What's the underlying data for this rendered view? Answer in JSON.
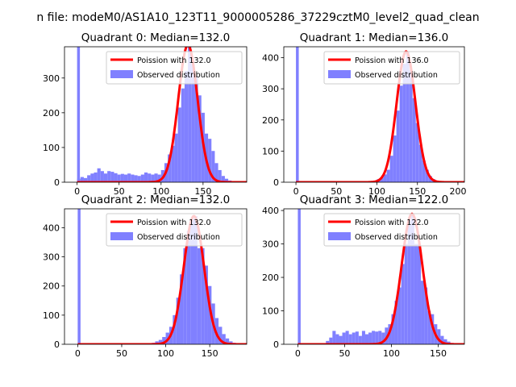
{
  "suptitle": "n file: modeM0/AS1A10_123T11_9000005286_37229cztM0_level2_quad_clean",
  "legend_labels": {
    "poisson_prefix": "Poission with ",
    "observed": "Observed distribution"
  },
  "colors": {
    "poisson": "#ff0000",
    "observed": "#8080ff"
  },
  "chart_data": [
    {
      "type": "bar",
      "title": "Quadrant 0: Median=132.0",
      "median": 132.0,
      "poisson_label": "Poission with 132.0",
      "xlim": [
        -15,
        202
      ],
      "ylim": [
        0,
        390
      ],
      "xticks": [
        0,
        50,
        100,
        150
      ],
      "yticks": [
        0,
        100,
        200,
        300
      ],
      "spike": {
        "x": 0,
        "height": 390
      },
      "bin_width": 4,
      "bins": [
        [
          0,
          10
        ],
        [
          4,
          15
        ],
        [
          8,
          12
        ],
        [
          12,
          20
        ],
        [
          16,
          25
        ],
        [
          20,
          28
        ],
        [
          24,
          40
        ],
        [
          28,
          32
        ],
        [
          32,
          25
        ],
        [
          36,
          32
        ],
        [
          40,
          30
        ],
        [
          44,
          26
        ],
        [
          48,
          22
        ],
        [
          52,
          24
        ],
        [
          56,
          22
        ],
        [
          60,
          25
        ],
        [
          64,
          22
        ],
        [
          68,
          20
        ],
        [
          72,
          18
        ],
        [
          76,
          22
        ],
        [
          80,
          28
        ],
        [
          84,
          25
        ],
        [
          88,
          22
        ],
        [
          92,
          25
        ],
        [
          96,
          22
        ],
        [
          100,
          35
        ],
        [
          104,
          55
        ],
        [
          108,
          80
        ],
        [
          112,
          105
        ],
        [
          116,
          140
        ],
        [
          120,
          215
        ],
        [
          124,
          270
        ],
        [
          128,
          320
        ],
        [
          132,
          395
        ],
        [
          136,
          340
        ],
        [
          140,
          305
        ],
        [
          144,
          250
        ],
        [
          148,
          200
        ],
        [
          152,
          140
        ],
        [
          156,
          125
        ],
        [
          160,
          90
        ],
        [
          164,
          55
        ],
        [
          168,
          35
        ],
        [
          172,
          18
        ],
        [
          176,
          10
        ],
        [
          180,
          5
        ],
        [
          184,
          3
        ],
        [
          188,
          2
        ]
      ]
    },
    {
      "type": "bar",
      "title": "Quadrant 1: Median=136.0",
      "median": 136.0,
      "poisson_label": "Poission with 136.0",
      "xlim": [
        -15,
        208
      ],
      "ylim": [
        0,
        435
      ],
      "xticks": [
        0,
        50,
        100,
        150,
        200
      ],
      "yticks": [
        0,
        100,
        200,
        300,
        400
      ],
      "spike": {
        "x": 0,
        "height": 435
      },
      "bin_width": 4,
      "bins": [
        [
          96,
          5
        ],
        [
          100,
          10
        ],
        [
          104,
          15
        ],
        [
          108,
          25
        ],
        [
          112,
          40
        ],
        [
          116,
          85
        ],
        [
          120,
          150
        ],
        [
          124,
          230
        ],
        [
          128,
          310
        ],
        [
          132,
          380
        ],
        [
          136,
          420
        ],
        [
          140,
          360
        ],
        [
          144,
          270
        ],
        [
          148,
          190
        ],
        [
          152,
          120
        ],
        [
          156,
          70
        ],
        [
          160,
          40
        ],
        [
          164,
          20
        ],
        [
          168,
          10
        ],
        [
          172,
          5
        ],
        [
          176,
          2
        ]
      ]
    },
    {
      "type": "bar",
      "title": "Quadrant 2: Median=132.0",
      "median": 132.0,
      "poisson_label": "Poission with 132.0",
      "xlim": [
        -15,
        192
      ],
      "ylim": [
        0,
        465
      ],
      "xticks": [
        0,
        50,
        100,
        150
      ],
      "yticks": [
        0,
        100,
        200,
        300,
        400
      ],
      "spike": {
        "x": 0,
        "height": 465
      },
      "bin_width": 4,
      "bins": [
        [
          80,
          2
        ],
        [
          84,
          5
        ],
        [
          88,
          10
        ],
        [
          92,
          15
        ],
        [
          96,
          25
        ],
        [
          100,
          40
        ],
        [
          104,
          60
        ],
        [
          108,
          100
        ],
        [
          112,
          160
        ],
        [
          116,
          240
        ],
        [
          120,
          330
        ],
        [
          124,
          390
        ],
        [
          128,
          430
        ],
        [
          132,
          440
        ],
        [
          136,
          330
        ],
        [
          140,
          330
        ],
        [
          144,
          270
        ],
        [
          148,
          200
        ],
        [
          152,
          140
        ],
        [
          156,
          90
        ],
        [
          160,
          60
        ],
        [
          164,
          35
        ],
        [
          168,
          20
        ],
        [
          172,
          10
        ],
        [
          176,
          5
        ],
        [
          180,
          2
        ]
      ]
    },
    {
      "type": "bar",
      "title": "Quadrant 3: Median=122.0",
      "median": 122.0,
      "poisson_label": "Poission with 122.0",
      "xlim": [
        -15,
        178
      ],
      "ylim": [
        0,
        405
      ],
      "xticks": [
        0,
        50,
        100,
        150
      ],
      "yticks": [
        0,
        100,
        200,
        300,
        400
      ],
      "spike": {
        "x": 0,
        "height": 405
      },
      "bin_width": 3.5,
      "bins": [
        [
          30,
          10
        ],
        [
          33.5,
          20
        ],
        [
          37,
          40
        ],
        [
          40.5,
          30
        ],
        [
          44,
          25
        ],
        [
          47.5,
          35
        ],
        [
          51,
          40
        ],
        [
          54.5,
          30
        ],
        [
          58,
          35
        ],
        [
          61.5,
          38
        ],
        [
          65,
          25
        ],
        [
          68.5,
          40
        ],
        [
          72,
          30
        ],
        [
          75.5,
          35
        ],
        [
          79,
          40
        ],
        [
          82.5,
          38
        ],
        [
          86,
          40
        ],
        [
          89.5,
          35
        ],
        [
          93,
          50
        ],
        [
          96.5,
          60
        ],
        [
          100,
          90
        ],
        [
          103.5,
          130
        ],
        [
          107,
          170
        ],
        [
          110.5,
          240
        ],
        [
          114,
          300
        ],
        [
          117.5,
          370
        ],
        [
          121,
          390
        ],
        [
          124.5,
          300
        ],
        [
          128,
          300
        ],
        [
          131.5,
          190
        ],
        [
          135,
          170
        ],
        [
          138.5,
          100
        ],
        [
          142,
          90
        ],
        [
          145.5,
          60
        ],
        [
          149,
          45
        ],
        [
          152.5,
          25
        ],
        [
          156,
          15
        ],
        [
          159.5,
          8
        ],
        [
          163,
          4
        ],
        [
          166.5,
          2
        ]
      ]
    }
  ]
}
